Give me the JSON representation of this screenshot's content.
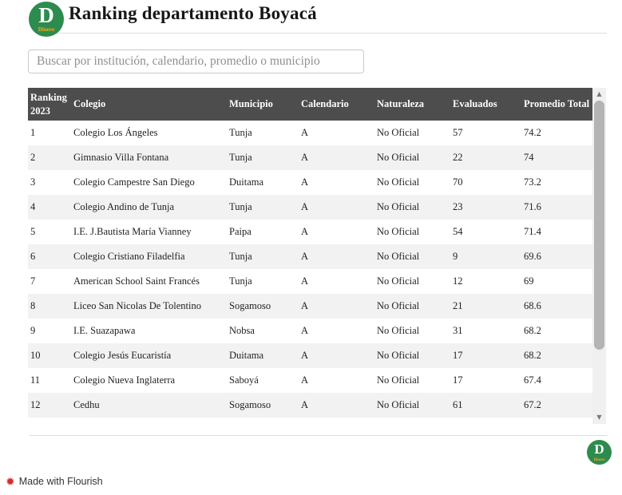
{
  "header": {
    "title": "Ranking departamento Boyacá",
    "logo_letter": "D",
    "logo_wordmark": "Dinero"
  },
  "search": {
    "placeholder": "Buscar por institución, calendario, promedio o municipio",
    "value": ""
  },
  "table": {
    "columns": [
      "Ranking 2023",
      "Colegio",
      "Municipio",
      "Calendario",
      "Naturaleza",
      "Evaluados",
      "Promedio Total"
    ],
    "rows": [
      [
        "1",
        "Colegio Los Ángeles",
        "Tunja",
        "A",
        "No Oficial",
        "57",
        "74.2"
      ],
      [
        "2",
        "Gimnasio Villa Fontana",
        "Tunja",
        "A",
        "No Oficial",
        "22",
        "74"
      ],
      [
        "3",
        "Colegio Campestre San Diego",
        "Duitama",
        "A",
        "No Oficial",
        "70",
        "73.2"
      ],
      [
        "4",
        "Colegio Andino de Tunja",
        "Tunja",
        "A",
        "No Oficial",
        "23",
        "71.6"
      ],
      [
        "5",
        "I.E. J.Bautista María Vianney",
        "Paipa",
        "A",
        "No Oficial",
        "54",
        "71.4"
      ],
      [
        "6",
        "Colegio Cristiano Filadelfia",
        "Tunja",
        "A",
        "No Oficial",
        "9",
        "69.6"
      ],
      [
        "7",
        "American School Saint Francés",
        "Tunja",
        "A",
        "No Oficial",
        "12",
        "69"
      ],
      [
        "8",
        "Liceo San Nicolas De Tolentino",
        "Sogamoso",
        "A",
        "No Oficial",
        "21",
        "68.6"
      ],
      [
        "9",
        "I.E. Suazapawa",
        "Nobsa",
        "A",
        "No Oficial",
        "31",
        "68.2"
      ],
      [
        "10",
        "Colegio Jesús Eucaristía",
        "Duitama",
        "A",
        "No Oficial",
        "17",
        "68.2"
      ],
      [
        "11",
        "Colegio Nueva Inglaterra",
        "Saboyá",
        "A",
        "No Oficial",
        "17",
        "67.4"
      ],
      [
        "12",
        "Cedhu",
        "Sogamoso",
        "A",
        "No Oficial",
        "61",
        "67.2"
      ]
    ]
  },
  "scrollbar": {
    "up_icon": "▲",
    "down_icon": "▼"
  },
  "footer": {
    "credit": "Made with Flourish",
    "flourish_icon": "✹",
    "logo_letter": "D",
    "logo_wordmark": "Dinero"
  },
  "colors": {
    "brand_green": "#2e8b4e",
    "dinero_gold": "#f5a81c",
    "header_bg": "#4d4d4d",
    "header_text": "#ffffff",
    "row_alt": "#f2f2f2",
    "cell_text": "#222222",
    "flourish_red": "#d22d2d"
  }
}
